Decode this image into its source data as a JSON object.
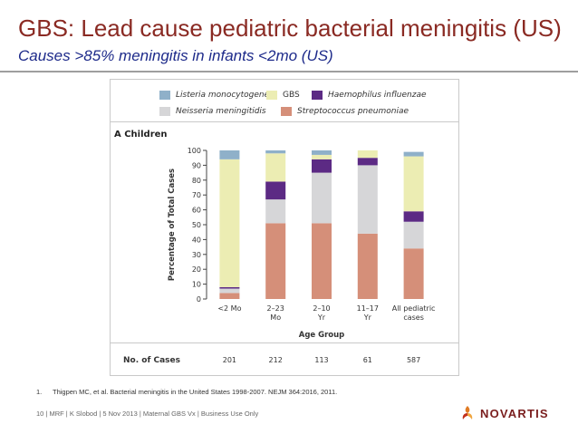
{
  "slide": {
    "title": "GBS: Lead cause pediatric bacterial meningitis (US)",
    "subtitle": "Causes >85% meningitis in infants <2mo (US)"
  },
  "colors": {
    "title": "#8a2a23",
    "subtitle": "#1d2a8a",
    "listeria": "#8fb0c9",
    "gbs": "#ecedb3",
    "haemophilus": "#5c2a84",
    "neisseria": "#d6d6d8",
    "streptococcus": "#d58f79"
  },
  "chart_data": {
    "type": "bar",
    "stacked": true,
    "panel_label": "A  Children",
    "categories": [
      "<2 Mo",
      "2–23\nMo",
      "2–10\nYr",
      "11–17\nYr",
      "All pediatric\ncases"
    ],
    "series": [
      {
        "name": "Streptococcus pneumoniae",
        "color": "#d58f79",
        "values": [
          4,
          51,
          51,
          44,
          34
        ]
      },
      {
        "name": "Neisseria meningitidis",
        "color": "#d6d6d8",
        "values": [
          3,
          16,
          34,
          46,
          18
        ]
      },
      {
        "name": "Haemophilus influenzae",
        "color": "#5c2a84",
        "values": [
          1,
          12,
          9,
          5,
          7
        ]
      },
      {
        "name": "GBS",
        "color": "#ecedb3",
        "values": [
          86,
          19,
          3,
          5,
          37
        ]
      },
      {
        "name": "Listeria monocytogenes",
        "color": "#8fb0c9",
        "values": [
          6,
          2,
          3,
          0,
          3
        ]
      }
    ],
    "legend_order": [
      "Listeria monocytogenes",
      "GBS",
      "Haemophilus influenzae",
      "Neisseria meningitidis",
      "Streptococcus pneumoniae"
    ],
    "ylabel": "Percentage of Total Cases",
    "xlabel": "Age Group",
    "ylim": [
      0,
      100
    ],
    "yticks": [
      0,
      10,
      20,
      30,
      40,
      50,
      60,
      70,
      80,
      90,
      100
    ],
    "cases_label": "No. of Cases",
    "cases": [
      "201",
      "212",
      "113",
      "61",
      "587"
    ]
  },
  "footnote": {
    "number": "1.",
    "text": "Thigpen MC, et al. Bacterial meningitis in the United States 1998-2007. NEJM 364:2016, 2011."
  },
  "footer": {
    "text": "10 | MRF | K Slobod | 5 Nov 2013 | Maternal GBS Vx | Business Use Only"
  },
  "logo": {
    "text": "NOVARTIS",
    "icon": "novartis-flame-icon"
  }
}
